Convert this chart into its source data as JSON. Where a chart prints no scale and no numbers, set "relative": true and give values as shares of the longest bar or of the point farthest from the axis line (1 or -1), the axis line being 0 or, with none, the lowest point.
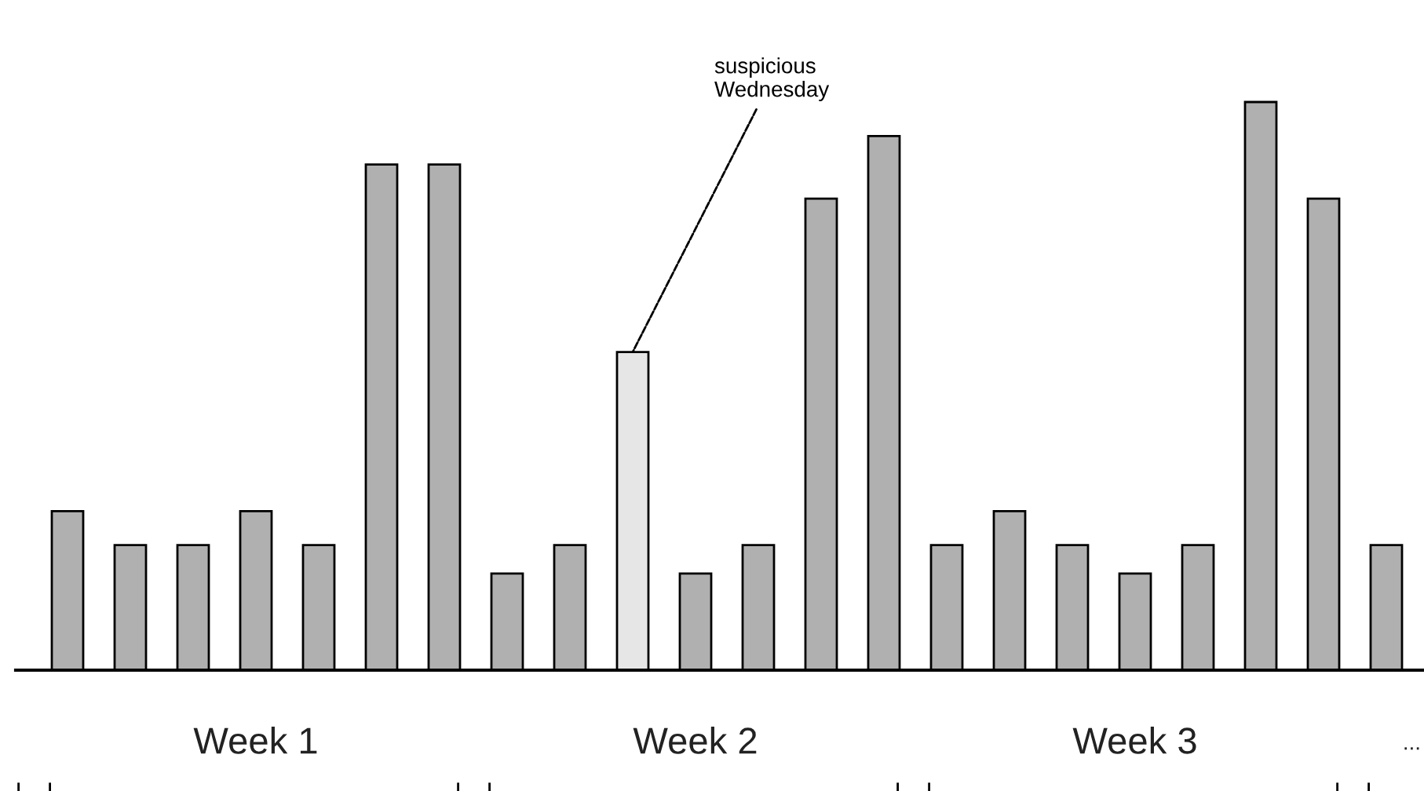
{
  "chart_data": {
    "type": "bar",
    "relative": true,
    "categories": [
      null,
      null,
      null,
      null,
      null,
      null,
      null,
      null,
      null,
      null,
      null,
      null,
      null,
      null,
      null,
      null,
      null,
      null,
      null,
      null,
      null,
      null
    ],
    "values": [
      0.28,
      0.22,
      0.22,
      0.28,
      0.22,
      0.89,
      0.89,
      0.17,
      0.22,
      0.56,
      0.17,
      0.22,
      0.83,
      0.94,
      0.22,
      0.28,
      0.22,
      0.17,
      0.22,
      1,
      0.83,
      0.22
    ],
    "colors": [
      "#b0b0b0",
      "#b0b0b0",
      "#b0b0b0",
      "#b0b0b0",
      "#b0b0b0",
      "#b0b0b0",
      "#b0b0b0",
      "#b0b0b0",
      "#b0b0b0",
      "#e6e6e6",
      "#b0b0b0",
      "#b0b0b0",
      "#b0b0b0",
      "#b0b0b0",
      "#b0b0b0",
      "#b0b0b0",
      "#b0b0b0",
      "#b0b0b0",
      "#b0b0b0",
      "#b0b0b0",
      "#b0b0b0",
      "#b0b0b0"
    ],
    "annotations": [
      "suspicious\nWednesday",
      "Week 1",
      "Week 2",
      "Week 3",
      "..."
    ],
    "grid": false,
    "legend": false
  }
}
